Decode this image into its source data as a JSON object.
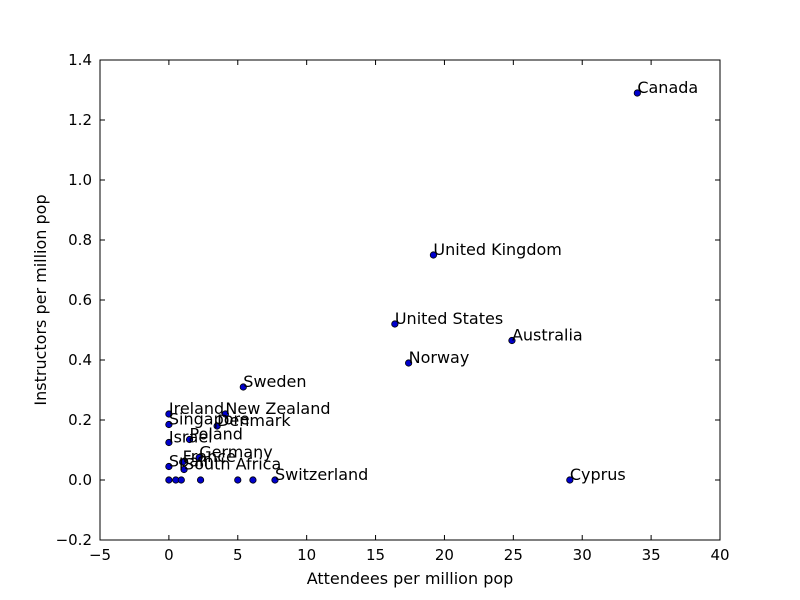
{
  "chart_data": {
    "type": "scatter",
    "title": "",
    "xlabel": "Attendees per million pop",
    "ylabel": "Instructors per million pop",
    "xlim": [
      -5,
      40
    ],
    "ylim": [
      -0.2,
      1.4
    ],
    "xticks": [
      -5,
      0,
      5,
      10,
      15,
      20,
      25,
      30,
      35,
      40
    ],
    "yticks": [
      -0.2,
      0.0,
      0.2,
      0.4,
      0.6,
      0.8,
      1.0,
      1.2,
      1.4
    ],
    "xtick_labels": [
      "−5",
      "0",
      "5",
      "10",
      "15",
      "20",
      "25",
      "30",
      "35",
      "40"
    ],
    "ytick_labels": [
      "−0.2",
      "0.0",
      "0.2",
      "0.4",
      "0.6",
      "0.8",
      "1.0",
      "1.2",
      "1.4"
    ],
    "grid": false,
    "marker_color": "#0000cc",
    "points": [
      {
        "label": "Canada",
        "x": 34.0,
        "y": 1.29
      },
      {
        "label": "United Kingdom",
        "x": 19.2,
        "y": 0.75
      },
      {
        "label": "United States",
        "x": 16.4,
        "y": 0.52
      },
      {
        "label": "Australia",
        "x": 24.9,
        "y": 0.465
      },
      {
        "label": "Norway",
        "x": 17.4,
        "y": 0.39
      },
      {
        "label": "Sweden",
        "x": 5.4,
        "y": 0.31
      },
      {
        "label": "New Zealand",
        "x": 4.1,
        "y": 0.22
      },
      {
        "label": "Ireland",
        "x": 0.0,
        "y": 0.22
      },
      {
        "label": "Denmark",
        "x": 3.5,
        "y": 0.18
      },
      {
        "label": "Singapore",
        "x": 0.0,
        "y": 0.185
      },
      {
        "label": "Poland",
        "x": 1.5,
        "y": 0.135
      },
      {
        "label": "Israel",
        "x": 0.0,
        "y": 0.125
      },
      {
        "label": "Germany",
        "x": 2.2,
        "y": 0.075
      },
      {
        "label": "France",
        "x": 1.0,
        "y": 0.06
      },
      {
        "label": "South Africa",
        "x": 1.1,
        "y": 0.035
      },
      {
        "label": "Spain",
        "x": 0.0,
        "y": 0.045
      },
      {
        "label": "Switzerland",
        "x": 7.7,
        "y": 0.0
      },
      {
        "label": "Cyprus",
        "x": 29.1,
        "y": 0.0
      },
      {
        "label": "",
        "x": 0.0,
        "y": 0.0
      },
      {
        "label": "",
        "x": 0.5,
        "y": 0.0
      },
      {
        "label": "",
        "x": 0.9,
        "y": 0.0
      },
      {
        "label": "",
        "x": 2.3,
        "y": 0.0
      },
      {
        "label": "",
        "x": 5.0,
        "y": 0.0
      },
      {
        "label": "",
        "x": 6.1,
        "y": 0.0
      }
    ]
  }
}
